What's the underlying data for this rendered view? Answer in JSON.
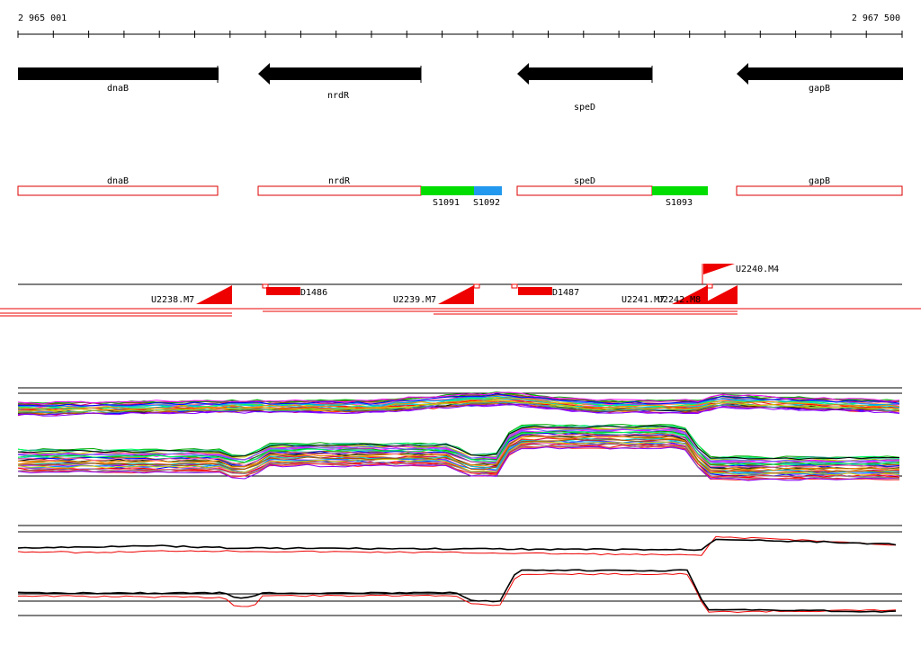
{
  "ruler": {
    "start_label": "2 965 001",
    "end_label": "2 967 500"
  },
  "genes": [
    {
      "name": "dnaB"
    },
    {
      "name": "nrdR"
    },
    {
      "name": "speD"
    },
    {
      "name": "gapB"
    }
  ],
  "segments": [
    {
      "name": "S1091",
      "color": "#00dd00"
    },
    {
      "name": "S1092",
      "color": "#2299ee"
    },
    {
      "name": "S1093",
      "color": "#00dd00"
    }
  ],
  "transcripts": {
    "below": [
      "U2238.M7",
      "U2239.M7",
      "U2241.M7",
      "U2242.M8"
    ],
    "above": [
      "U2240.M4"
    ],
    "regions": [
      "D1486",
      "D1487"
    ]
  },
  "colors": {
    "gene_arrow": "#000000",
    "feature_outline": "#dd0000",
    "transcript": "#ee0000"
  },
  "profile_colors": [
    "#ff0000",
    "#00aa00",
    "#0000ff",
    "#ff00ff",
    "#00cccc",
    "#cccc00",
    "#ff8800",
    "#8800ff",
    "#000000",
    "#888888",
    "#00ff66",
    "#ff66aa",
    "#6666ff",
    "#aa5500",
    "#99cc00",
    "#cc0066",
    "#0099ff",
    "#666600",
    "#ff3333",
    "#33aa99"
  ]
}
